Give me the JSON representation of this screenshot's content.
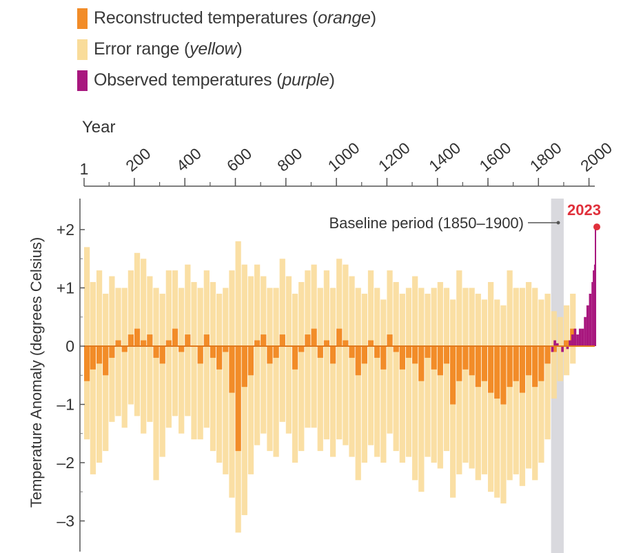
{
  "legend": {
    "items": [
      {
        "label": "Reconstructed temperatures",
        "qualifier": "orange",
        "color": "#F28C28"
      },
      {
        "label": "Error range",
        "qualifier": "yellow",
        "color": "#F9DC9A"
      },
      {
        "label": "Observed temperatures",
        "qualifier": "purple",
        "color": "#A8177E"
      }
    ]
  },
  "chart_data": {
    "type": "bar",
    "title": "",
    "xlabel": "Year",
    "ylabel": "Temperature Anomaly (degrees Celsius)",
    "xlim": [
      1,
      2023
    ],
    "ylim": [
      -3.5,
      2.5
    ],
    "x_ticks": [
      {
        "value": 1,
        "label": "1"
      },
      {
        "value": 200,
        "label": "200"
      },
      {
        "value": 400,
        "label": "400"
      },
      {
        "value": 600,
        "label": "600"
      },
      {
        "value": 800,
        "label": "800"
      },
      {
        "value": 1000,
        "label": "1000"
      },
      {
        "value": 1200,
        "label": "1200"
      },
      {
        "value": 1400,
        "label": "1400"
      },
      {
        "value": 1600,
        "label": "1600"
      },
      {
        "value": 1800,
        "label": "1800"
      },
      {
        "value": 2000,
        "label": "2000"
      }
    ],
    "y_ticks": [
      {
        "value": 2,
        "label": "+2"
      },
      {
        "value": 1,
        "label": "+1"
      },
      {
        "value": 0,
        "label": "0"
      },
      {
        "value": -1,
        "label": "–1"
      },
      {
        "value": -2,
        "label": "–2"
      },
      {
        "value": -3,
        "label": "–3"
      }
    ],
    "grid": false,
    "legend_position": "top-left",
    "baseline_period": {
      "start": 1850,
      "end": 1900,
      "label": "Baseline period (1850–1900)",
      "color": "#D9D9DE"
    },
    "highlight": {
      "year": 2023,
      "value": 2.07,
      "label": "2023",
      "color": "#E0303B"
    },
    "series": [
      {
        "name": "Reconstructed temperatures",
        "color": "#F28C28",
        "x": [
          1,
          25,
          50,
          75,
          100,
          125,
          150,
          175,
          200,
          225,
          250,
          275,
          300,
          325,
          350,
          375,
          400,
          425,
          450,
          475,
          500,
          525,
          550,
          575,
          600,
          625,
          650,
          675,
          700,
          725,
          750,
          775,
          800,
          825,
          850,
          875,
          900,
          925,
          950,
          975,
          1000,
          1025,
          1050,
          1075,
          1100,
          1125,
          1150,
          1175,
          1200,
          1225,
          1250,
          1275,
          1300,
          1325,
          1350,
          1375,
          1400,
          1425,
          1450,
          1475,
          1500,
          1525,
          1550,
          1575,
          1600,
          1625,
          1650,
          1675,
          1700,
          1725,
          1750,
          1775,
          1800,
          1825,
          1850,
          1875,
          1900,
          1925
        ],
        "values": [
          -0.6,
          -0.4,
          -0.3,
          -0.5,
          -0.2,
          0.1,
          -0.1,
          0.2,
          0.3,
          0.1,
          0.2,
          -0.2,
          -0.3,
          0.1,
          0.3,
          -0.1,
          0.2,
          0.0,
          -0.3,
          0.2,
          -0.2,
          -0.4,
          -0.1,
          -0.8,
          -1.8,
          -0.7,
          -0.5,
          0.1,
          0.2,
          -0.3,
          -0.2,
          0.2,
          0.0,
          -0.4,
          -0.1,
          0.2,
          0.3,
          -0.2,
          0.1,
          -0.3,
          0.3,
          0.1,
          -0.2,
          -0.5,
          -0.3,
          0.1,
          -0.2,
          -0.4,
          0.2,
          -0.1,
          -0.4,
          -0.2,
          -0.3,
          -0.6,
          -0.2,
          -0.4,
          -0.5,
          -0.3,
          -1.0,
          -0.6,
          -0.4,
          -0.5,
          -0.7,
          -0.6,
          -0.8,
          -0.9,
          -1.0,
          -0.7,
          -0.6,
          -0.8,
          -0.5,
          -0.7,
          -0.6,
          -0.3,
          -0.1,
          0.0,
          0.1,
          0.3
        ]
      },
      {
        "name": "Error range",
        "color": "#F9DC9A",
        "x": [
          1,
          25,
          50,
          75,
          100,
          125,
          150,
          175,
          200,
          225,
          250,
          275,
          300,
          325,
          350,
          375,
          400,
          425,
          450,
          475,
          500,
          525,
          550,
          575,
          600,
          625,
          650,
          675,
          700,
          725,
          750,
          775,
          800,
          825,
          850,
          875,
          900,
          925,
          950,
          975,
          1000,
          1025,
          1050,
          1075,
          1100,
          1125,
          1150,
          1175,
          1200,
          1225,
          1250,
          1275,
          1300,
          1325,
          1350,
          1375,
          1400,
          1425,
          1450,
          1475,
          1500,
          1525,
          1550,
          1575,
          1600,
          1625,
          1650,
          1675,
          1700,
          1725,
          1750,
          1775,
          1800,
          1825,
          1850,
          1875,
          1900,
          1925
        ],
        "upper": [
          1.7,
          1.1,
          1.3,
          0.9,
          1.2,
          1.0,
          1.0,
          1.3,
          1.6,
          1.5,
          1.2,
          1.0,
          0.9,
          1.3,
          1.3,
          1.0,
          1.4,
          1.1,
          1.0,
          1.3,
          1.1,
          0.9,
          1.0,
          1.3,
          1.8,
          1.4,
          1.2,
          1.4,
          1.2,
          1.0,
          1.0,
          1.5,
          1.2,
          0.9,
          1.1,
          1.3,
          1.4,
          1.0,
          1.3,
          1.0,
          1.5,
          1.4,
          1.2,
          1.0,
          0.9,
          1.3,
          1.0,
          0.8,
          1.3,
          1.1,
          0.9,
          1.0,
          1.2,
          1.0,
          0.9,
          1.0,
          1.1,
          1.0,
          0.8,
          1.3,
          1.0,
          1.0,
          0.9,
          0.8,
          1.1,
          0.8,
          0.7,
          1.3,
          1.0,
          1.0,
          1.1,
          1.0,
          0.8,
          0.9,
          0.6,
          0.5,
          0.7,
          0.9
        ],
        "lower": [
          -1.6,
          -2.2,
          -2.0,
          -1.8,
          -1.3,
          -1.2,
          -1.4,
          -1.0,
          -1.2,
          -1.5,
          -1.3,
          -2.3,
          -1.9,
          -1.4,
          -1.2,
          -1.5,
          -1.2,
          -1.6,
          -1.6,
          -1.4,
          -1.8,
          -2.0,
          -2.2,
          -2.6,
          -3.2,
          -2.9,
          -2.2,
          -1.7,
          -1.5,
          -1.8,
          -1.9,
          -1.3,
          -1.5,
          -2.0,
          -1.8,
          -1.4,
          -1.4,
          -1.8,
          -1.6,
          -1.9,
          -1.6,
          -1.7,
          -1.9,
          -2.3,
          -2.0,
          -1.7,
          -1.9,
          -2.0,
          -1.5,
          -1.8,
          -2.0,
          -1.9,
          -2.3,
          -2.5,
          -1.9,
          -2.0,
          -2.1,
          -1.8,
          -2.6,
          -2.2,
          -2.0,
          -2.1,
          -2.3,
          -2.2,
          -2.5,
          -2.6,
          -2.7,
          -2.3,
          -2.2,
          -2.4,
          -2.1,
          -2.3,
          -2.0,
          -1.6,
          -0.9,
          -0.6,
          -0.5,
          -0.3
        ]
      },
      {
        "name": "Observed temperatures",
        "color": "#A8177E",
        "x": [
          1850,
          1860,
          1870,
          1880,
          1890,
          1900,
          1910,
          1920,
          1930,
          1940,
          1950,
          1960,
          1970,
          1980,
          1990,
          2000,
          2010,
          2015,
          2020,
          2023
        ],
        "values": [
          -0.1,
          0.1,
          0.05,
          0.0,
          -0.1,
          0.0,
          -0.05,
          0.1,
          0.2,
          0.3,
          0.2,
          0.3,
          0.3,
          0.5,
          0.7,
          0.9,
          1.1,
          1.3,
          1.4,
          2.07
        ]
      }
    ]
  }
}
